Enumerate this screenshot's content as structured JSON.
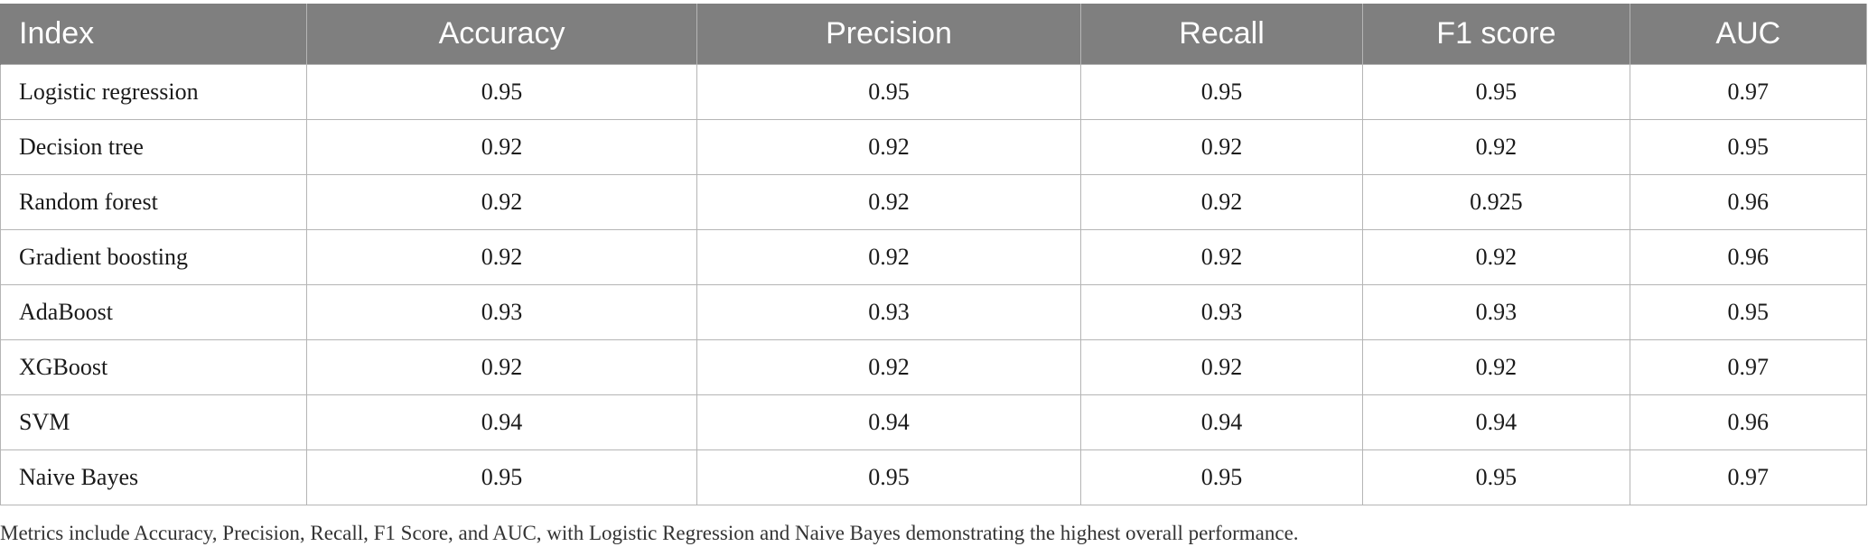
{
  "table": {
    "headers": [
      "Index",
      "Accuracy",
      "Precision",
      "Recall",
      "F1 score",
      "AUC"
    ],
    "rows": [
      [
        "Logistic regression",
        "0.95",
        "0.95",
        "0.95",
        "0.95",
        "0.97"
      ],
      [
        "Decision tree",
        "0.92",
        "0.92",
        "0.92",
        "0.92",
        "0.95"
      ],
      [
        "Random forest",
        "0.92",
        "0.92",
        "0.92",
        "0.925",
        "0.96"
      ],
      [
        "Gradient boosting",
        "0.92",
        "0.92",
        "0.92",
        "0.92",
        "0.96"
      ],
      [
        "AdaBoost",
        "0.93",
        "0.93",
        "0.93",
        "0.93",
        "0.95"
      ],
      [
        "XGBoost",
        "0.92",
        "0.92",
        "0.92",
        "0.92",
        "0.97"
      ],
      [
        "SVM",
        "0.94",
        "0.94",
        "0.94",
        "0.94",
        "0.96"
      ],
      [
        "Naive Bayes",
        "0.95",
        "0.95",
        "0.95",
        "0.95",
        "0.97"
      ]
    ]
  },
  "caption": "Metrics include Accuracy, Precision, Recall, F1 Score, and AUC, with Logistic Regression and Naive Bayes demonstrating the highest overall performance.",
  "colors": {
    "header_background": "#7f7f7f",
    "header_text": "#ffffff",
    "grid_line": "#b5b5b5"
  }
}
